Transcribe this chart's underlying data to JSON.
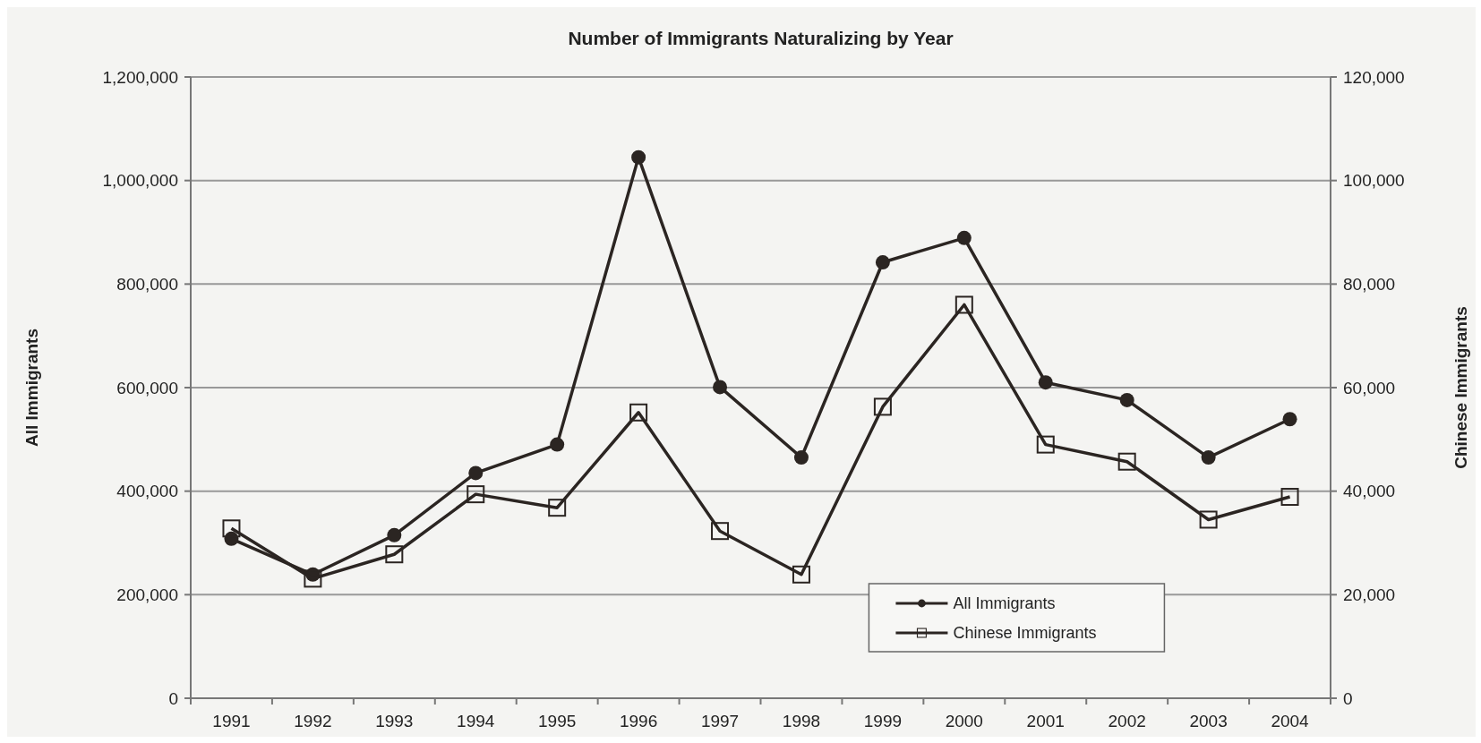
{
  "chart_data": {
    "type": "line",
    "title": "Number of Immigrants Naturalizing by Year",
    "ylabel": "All Immigrants",
    "y2label": "Chinese Immigrants",
    "categories": [
      "1991",
      "1992",
      "1993",
      "1994",
      "1995",
      "1996",
      "1997",
      "1998",
      "1999",
      "2000",
      "2001",
      "2002",
      "2003",
      "2004"
    ],
    "series": [
      {
        "name": "All Immigrants",
        "color": "#2b2522",
        "marker": "circle",
        "values": [
          308000,
          239000,
          315000,
          435000,
          490000,
          1045000,
          601000,
          465000,
          842000,
          889000,
          610000,
          576000,
          465000,
          539000
        ]
      },
      {
        "name": "Chinese Immigrants",
        "color": "#2b2522",
        "marker": "square",
        "axis": "y2",
        "values": [
          32800,
          23100,
          27800,
          39400,
          36800,
          55200,
          32300,
          23900,
          56300,
          76000,
          49000,
          45700,
          34500,
          38900
        ]
      }
    ],
    "ylim": [
      0,
      1200000
    ],
    "yticks": [
      {
        "value": 0,
        "label": "0"
      },
      {
        "value": 200000,
        "label": "200,000"
      },
      {
        "value": 400000,
        "label": "400,000"
      },
      {
        "value": 600000,
        "label": "600,000"
      },
      {
        "value": 800000,
        "label": "800,000"
      },
      {
        "value": 1000000,
        "label": "1,000,000"
      },
      {
        "value": 1200000,
        "label": "1,200,000"
      }
    ],
    "y2lim": [
      0,
      120000
    ],
    "y2ticks": [
      {
        "value": 0,
        "label": "0"
      },
      {
        "value": 20000,
        "label": "20,000"
      },
      {
        "value": 40000,
        "label": "40,000"
      },
      {
        "value": 60000,
        "label": "60,000"
      },
      {
        "value": 80000,
        "label": "80,000"
      },
      {
        "value": 100000,
        "label": "100,000"
      },
      {
        "value": 120000,
        "label": "120,000"
      }
    ],
    "grid": "y",
    "legend": "bottom",
    "line_style": "solid"
  }
}
